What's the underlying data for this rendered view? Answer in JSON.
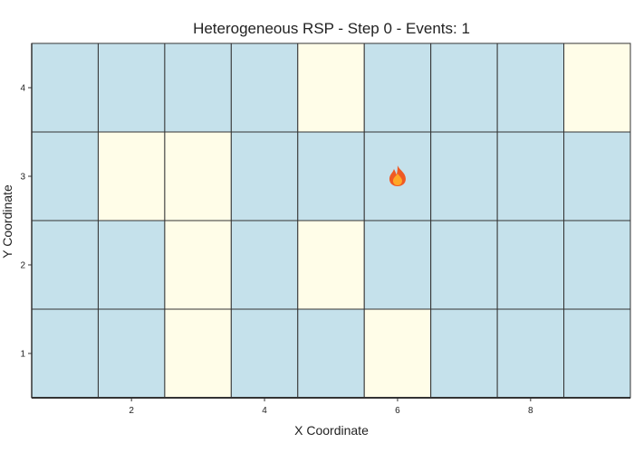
{
  "chart_data": {
    "type": "heatmap",
    "title": "Heterogeneous RSP - Step 0 - Events: 1",
    "xlabel": "X Coordinate",
    "ylabel": "Y Coordinate",
    "xlim": [
      0.5,
      9.5
    ],
    "ylim": [
      0.5,
      4.5
    ],
    "x_ticks": [
      2,
      4,
      6,
      8
    ],
    "y_ticks": [
      1,
      2,
      3,
      4
    ],
    "colors": {
      "blue_cell": "#c5e1eb",
      "yellow_cell": "#fffde8",
      "grid_line": "#333333"
    },
    "cell_legend": {
      "blue": "blue_cell",
      "yellow": "yellow_cell"
    },
    "rows": [
      {
        "y": 1,
        "cells": [
          "blue",
          "blue",
          "yellow",
          "blue",
          "blue",
          "yellow",
          "blue",
          "blue",
          "blue"
        ]
      },
      {
        "y": 2,
        "cells": [
          "blue",
          "blue",
          "yellow",
          "blue",
          "yellow",
          "blue",
          "blue",
          "blue",
          "blue"
        ]
      },
      {
        "y": 3,
        "cells": [
          "blue",
          "yellow",
          "yellow",
          "blue",
          "blue",
          "blue",
          "blue",
          "blue",
          "blue"
        ]
      },
      {
        "y": 4,
        "cells": [
          "blue",
          "blue",
          "blue",
          "blue",
          "yellow",
          "blue",
          "blue",
          "blue",
          "yellow"
        ]
      }
    ],
    "events": [
      {
        "x": 6,
        "y": 3,
        "icon": "fire-icon"
      }
    ]
  }
}
